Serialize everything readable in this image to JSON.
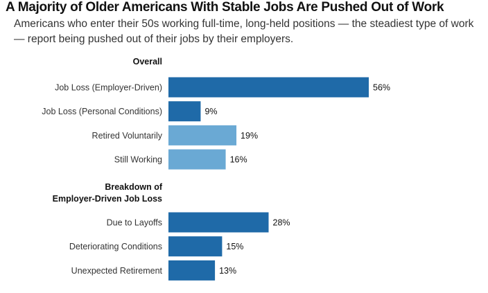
{
  "title": "A Majority of Older Americans With Stable Jobs Are Pushed Out of Work",
  "subtitle": "Americans who enter their 50s working full-time, long-held positions — the steadiest type of work — report being pushed out of their jobs by their employers.",
  "colors": {
    "dark": "#1f6aa8",
    "light": "#6aa9d4"
  },
  "chart_data": {
    "type": "bar",
    "orientation": "horizontal",
    "groups": [
      {
        "label_lines": [
          "Overall"
        ],
        "bars": [
          {
            "category": "Job Loss (Employer-Driven)",
            "value": 56,
            "label": "56%",
            "color": "dark"
          },
          {
            "category": "Job Loss (Personal Conditions)",
            "value": 9,
            "label": "9%",
            "color": "dark"
          },
          {
            "category": "Retired Voluntarily",
            "value": 19,
            "label": "19%",
            "color": "light"
          },
          {
            "category": "Still Working",
            "value": 16,
            "label": "16%",
            "color": "light"
          }
        ]
      },
      {
        "label_lines": [
          "Breakdown of",
          "Employer-Driven Job Loss"
        ],
        "bars": [
          {
            "category": "Due to Layoffs",
            "value": 28,
            "label": "28%",
            "color": "dark"
          },
          {
            "category": "Deteriorating Conditions",
            "value": 15,
            "label": "15%",
            "color": "dark"
          },
          {
            "category": "Unexpected Retirement",
            "value": 13,
            "label": "13%",
            "color": "dark"
          }
        ]
      }
    ],
    "xlim": [
      0,
      56
    ],
    "grid": false,
    "legend": "none"
  }
}
